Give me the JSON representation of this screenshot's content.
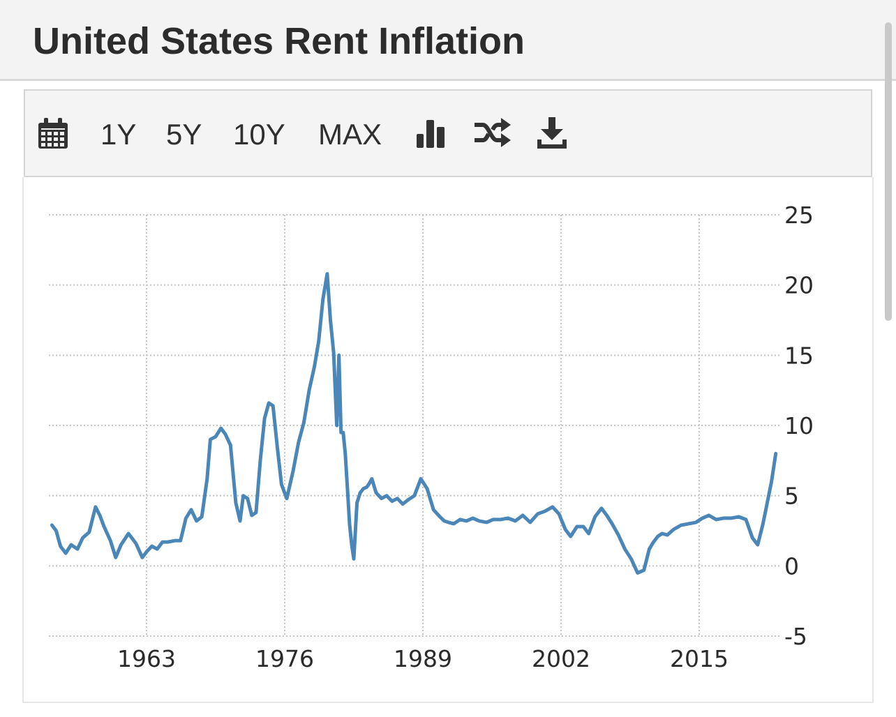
{
  "header": {
    "title": "United States Rent Inflation"
  },
  "toolbar": {
    "calendar_icon": "calendar-icon",
    "range_1y": "1Y",
    "range_5y": "5Y",
    "range_10y": "10Y",
    "range_max": "MAX",
    "chart_type_icon": "bar-chart-icon",
    "compare_icon": "shuffle-icon",
    "download_icon": "download-icon"
  },
  "colors": {
    "line": "#4a86b8",
    "grid": "#c4c4c4",
    "text": "#2a2a2a"
  },
  "chart_data": {
    "type": "line",
    "title": "United States Rent Inflation",
    "xlabel": "",
    "ylabel": "",
    "xlim": [
      1956,
      2022.5
    ],
    "ylim": [
      -5,
      25
    ],
    "x_ticks": [
      1963,
      1976,
      1989,
      2002,
      2015
    ],
    "x_tick_labels": [
      "1963",
      "1976",
      "1989",
      "2002",
      "2015"
    ],
    "y_ticks": [
      -5,
      0,
      5,
      10,
      15,
      20,
      25
    ],
    "y_tick_labels": [
      "-5",
      "0",
      "5",
      "10",
      "15",
      "20",
      "25"
    ],
    "grid": true,
    "y_axis_position": "right",
    "series": [
      {
        "name": "Rent Inflation",
        "x": [
          1954.1,
          1954.5,
          1954.9,
          1955.4,
          1955.9,
          1956.5,
          1957.0,
          1957.6,
          1958.2,
          1958.6,
          1959.0,
          1959.6,
          1960.1,
          1960.6,
          1961.3,
          1962.0,
          1962.6,
          1963.0,
          1963.5,
          1964.0,
          1964.5,
          1965.0,
          1965.7,
          1966.2,
          1966.7,
          1967.2,
          1967.7,
          1968.2,
          1968.7,
          1969.0,
          1969.5,
          1970.0,
          1970.4,
          1970.9,
          1971.4,
          1971.8,
          1972.1,
          1972.5,
          1972.9,
          1973.3,
          1973.7,
          1974.1,
          1974.5,
          1974.9,
          1975.3,
          1975.7,
          1976.2,
          1976.8,
          1977.3,
          1977.8,
          1978.3,
          1978.8,
          1979.2,
          1979.6,
          1980.0,
          1980.3,
          1980.6,
          1980.9,
          1981.1,
          1981.3,
          1981.5,
          1981.7,
          1981.9,
          1982.1,
          1982.3,
          1982.5,
          1982.8,
          1983.1,
          1983.4,
          1983.7,
          1983.9,
          1984.2,
          1984.6,
          1985.1,
          1985.6,
          1986.1,
          1986.6,
          1987.1,
          1987.6,
          1988.2,
          1988.8,
          1989.4,
          1990.0,
          1990.6,
          1991.0,
          1991.4,
          1991.9,
          1992.5,
          1993.1,
          1993.7,
          1994.3,
          1995.0,
          1995.6,
          1996.3,
          1997.0,
          1997.7,
          1998.4,
          1999.1,
          1999.8,
          2000.5,
          2001.2,
          2001.8,
          2002.4,
          2002.9,
          2003.5,
          2004.1,
          2004.6,
          2005.2,
          2005.8,
          2006.3,
          2006.8,
          2007.4,
          2008.0,
          2008.6,
          2009.2,
          2009.8,
          2010.3,
          2010.7,
          2011.1,
          2011.5,
          2012.0,
          2012.6,
          2013.3,
          2014.0,
          2014.7,
          2015.3,
          2015.9,
          2016.6,
          2017.3,
          2018.0,
          2018.7,
          2019.4,
          2020.0,
          2020.5,
          2021.0,
          2021.4,
          2021.8,
          2022.2
        ],
        "values": [
          2.9,
          2.5,
          1.4,
          0.9,
          1.5,
          1.2,
          2.0,
          2.4,
          4.2,
          3.6,
          2.8,
          1.8,
          0.6,
          1.5,
          2.3,
          1.6,
          0.6,
          1.0,
          1.4,
          1.2,
          1.7,
          1.7,
          1.8,
          1.8,
          3.4,
          4.0,
          3.2,
          3.5,
          6.2,
          9.0,
          9.2,
          9.8,
          9.4,
          8.6,
          4.5,
          3.2,
          5.0,
          4.8,
          3.6,
          3.8,
          7.5,
          10.5,
          11.6,
          11.4,
          8.5,
          5.8,
          4.8,
          6.8,
          8.8,
          10.2,
          12.5,
          14.2,
          16.0,
          19.0,
          20.8,
          17.5,
          15.2,
          10.0,
          15.0,
          9.5,
          9.5,
          8.0,
          5.5,
          3.0,
          1.5,
          0.5,
          4.5,
          5.2,
          5.5,
          5.6,
          5.8,
          6.2,
          5.2,
          4.8,
          5.0,
          4.6,
          4.8,
          4.4,
          4.7,
          5.0,
          6.2,
          5.5,
          4.0,
          3.5,
          3.2,
          3.1,
          3.0,
          3.3,
          3.2,
          3.4,
          3.2,
          3.1,
          3.3,
          3.3,
          3.4,
          3.2,
          3.6,
          3.1,
          3.7,
          3.9,
          4.2,
          3.7,
          2.6,
          2.1,
          2.8,
          2.8,
          2.3,
          3.5,
          4.1,
          3.6,
          3.0,
          2.2,
          1.2,
          0.5,
          -0.5,
          -0.3,
          1.2,
          1.7,
          2.1,
          2.3,
          2.2,
          2.6,
          2.9,
          3.0,
          3.1,
          3.4,
          3.6,
          3.3,
          3.4,
          3.4,
          3.5,
          3.3,
          2.0,
          1.5,
          3.0,
          4.5,
          6.0,
          8.0
        ]
      }
    ]
  }
}
